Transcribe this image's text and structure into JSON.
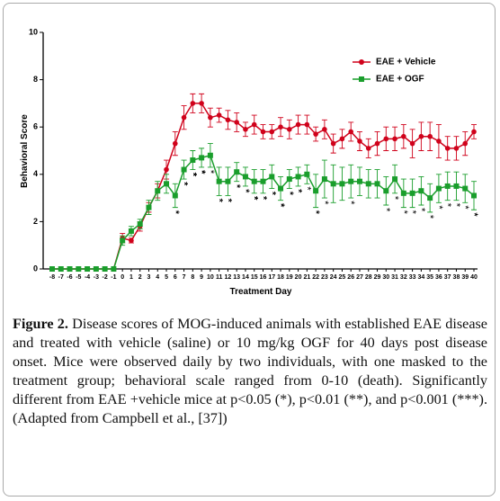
{
  "chart_data": {
    "type": "line",
    "xlabel": "Treatment Day",
    "ylabel": "Behavioral Score",
    "x": [
      -8,
      -7,
      -6,
      -5,
      -4,
      -3,
      -2,
      -1,
      0,
      1,
      2,
      3,
      4,
      5,
      6,
      7,
      8,
      9,
      10,
      11,
      12,
      13,
      14,
      15,
      16,
      17,
      18,
      19,
      20,
      21,
      22,
      23,
      24,
      25,
      26,
      27,
      28,
      29,
      30,
      31,
      32,
      33,
      34,
      35,
      36,
      37,
      38,
      39,
      40
    ],
    "xlim": [
      -8,
      40
    ],
    "ylim": [
      0,
      10
    ],
    "yticks": [
      0,
      2,
      4,
      6,
      8,
      10
    ],
    "legend": "top-right",
    "series": [
      {
        "name": "EAE + Vehicle",
        "color": "#d0021b",
        "marker": "circle",
        "values": [
          0,
          0,
          0,
          0,
          0,
          0,
          0,
          0,
          1.3,
          1.2,
          1.8,
          2.6,
          3.3,
          4.2,
          5.3,
          6.4,
          7.0,
          7.0,
          6.4,
          6.5,
          6.3,
          6.2,
          5.9,
          6.1,
          5.8,
          5.8,
          6.0,
          5.9,
          6.1,
          6.1,
          5.7,
          5.9,
          5.3,
          5.5,
          5.8,
          5.4,
          5.1,
          5.3,
          5.5,
          5.5,
          5.6,
          5.3,
          5.6,
          5.6,
          5.4,
          5.1,
          5.1,
          5.3,
          5.8
        ],
        "errors": [
          0,
          0,
          0,
          0,
          0,
          0,
          0,
          0,
          0.2,
          0.1,
          0.2,
          0.2,
          0.3,
          0.4,
          0.5,
          0.5,
          0.4,
          0.4,
          0.4,
          0.3,
          0.4,
          0.4,
          0.3,
          0.4,
          0.3,
          0.3,
          0.4,
          0.4,
          0.4,
          0.4,
          0.3,
          0.4,
          0.4,
          0.4,
          0.4,
          0.4,
          0.4,
          0.5,
          0.5,
          0.5,
          0.5,
          0.6,
          0.6,
          0.6,
          0.7,
          0.5,
          0.5,
          0.5,
          0.3
        ]
      },
      {
        "name": "EAE + OGF",
        "color": "#1a9e2c",
        "marker": "square",
        "values": [
          0,
          0,
          0,
          0,
          0,
          0,
          0,
          0,
          1.2,
          1.6,
          1.9,
          2.6,
          3.3,
          3.6,
          3.1,
          4.2,
          4.6,
          4.7,
          4.8,
          3.7,
          3.7,
          4.1,
          3.9,
          3.7,
          3.7,
          3.9,
          3.4,
          3.8,
          3.9,
          4.0,
          3.3,
          3.8,
          3.6,
          3.6,
          3.7,
          3.7,
          3.6,
          3.6,
          3.3,
          3.8,
          3.2,
          3.2,
          3.3,
          3.0,
          3.4,
          3.5,
          3.5,
          3.4,
          3.1
        ],
        "errors": [
          0,
          0,
          0,
          0,
          0,
          0,
          0,
          0,
          0.2,
          0.2,
          0.2,
          0.3,
          0.4,
          0.4,
          0.5,
          0.4,
          0.4,
          0.4,
          0.5,
          0.6,
          0.6,
          0.4,
          0.4,
          0.5,
          0.5,
          0.5,
          0.5,
          0.4,
          0.4,
          0.4,
          0.7,
          0.8,
          0.8,
          0.7,
          0.7,
          0.6,
          0.6,
          0.6,
          0.6,
          0.6,
          0.6,
          0.6,
          0.6,
          0.6,
          0.6,
          0.6,
          0.6,
          0.6,
          0.6
        ]
      }
    ],
    "significance": [
      {
        "x": 6,
        "label": "**"
      },
      {
        "x": 7,
        "label": "**"
      },
      {
        "x": 8,
        "label": "***"
      },
      {
        "x": 9,
        "label": "***"
      },
      {
        "x": 10,
        "label": "*"
      },
      {
        "x": 11,
        "label": "**"
      },
      {
        "x": 12,
        "label": "**"
      },
      {
        "x": 13,
        "label": "**"
      },
      {
        "x": 14,
        "label": "**"
      },
      {
        "x": 15,
        "label": "***"
      },
      {
        "x": 16,
        "label": "**"
      },
      {
        "x": 17,
        "label": "**"
      },
      {
        "x": 18,
        "label": "***"
      },
      {
        "x": 19,
        "label": "**"
      },
      {
        "x": 20,
        "label": "**"
      },
      {
        "x": 21,
        "label": "*"
      },
      {
        "x": 22,
        "label": "**"
      },
      {
        "x": 23,
        "label": "*"
      },
      {
        "x": 26,
        "label": "*"
      },
      {
        "x": 30,
        "label": "*"
      },
      {
        "x": 31,
        "label": "*"
      },
      {
        "x": 32,
        "label": "*"
      },
      {
        "x": 33,
        "label": "*"
      },
      {
        "x": 34,
        "label": "*"
      },
      {
        "x": 35,
        "label": "*"
      },
      {
        "x": 36,
        "label": "*"
      },
      {
        "x": 37,
        "label": "*"
      },
      {
        "x": 38,
        "label": "*"
      },
      {
        "x": 39,
        "label": "*"
      },
      {
        "x": 40,
        "label": "**"
      }
    ]
  },
  "caption": {
    "label": "Figure 2.",
    "text": "Disease scores of MOG-induced animals with established EAE disease and treated with vehicle (saline) or 10 mg/kg OGF for 40 days post disease onset. Mice were observed daily by two individuals, with one masked to the treatment group; behavioral scale ranged from 0-10 (death). Significantly different from EAE +vehicle mice at p<0.05 (*), p<0.01 (**), and p<0.001 (***). (Adapted from Campbell et al., [37])"
  }
}
